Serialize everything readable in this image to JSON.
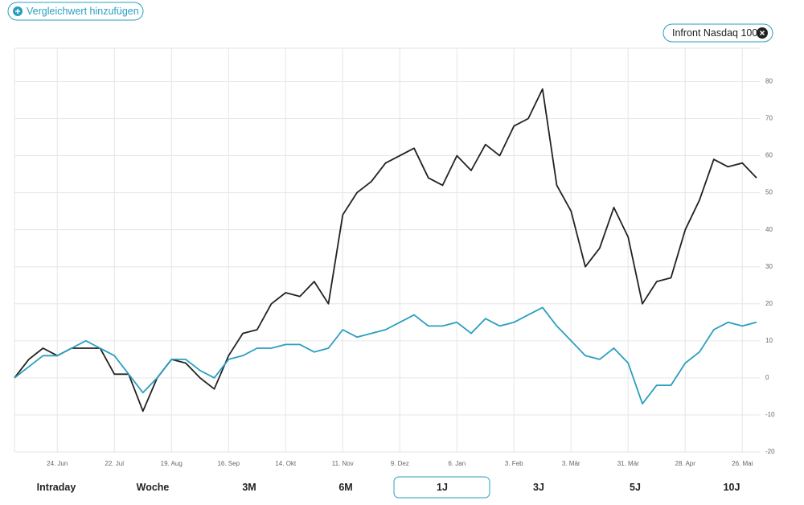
{
  "header": {
    "add_button": "Vergleichwert hinzufügen"
  },
  "chart_data": {
    "type": "line",
    "categories": [
      null,
      null,
      null,
      "24. Jun",
      null,
      null,
      null,
      "22. Jul",
      null,
      null,
      null,
      "19. Aug",
      null,
      null,
      null,
      "16. Sep",
      null,
      null,
      null,
      "14. Okt",
      null,
      null,
      null,
      "11. Nov",
      null,
      null,
      null,
      "9. Dez",
      null,
      null,
      null,
      "6. Jan",
      null,
      null,
      null,
      "3. Feb",
      null,
      null,
      null,
      "3. Mär",
      null,
      null,
      null,
      "31. Mär",
      null,
      null,
      null,
      "28. Apr",
      null,
      null,
      null,
      "26. Mai",
      null
    ],
    "series": [
      {
        "color": "#222222",
        "values": [
          0,
          5,
          8,
          6,
          8,
          8,
          8,
          1,
          1,
          -9,
          0,
          5,
          4,
          0,
          -3,
          6,
          12,
          13,
          20,
          23,
          22,
          26,
          20,
          44,
          50,
          53,
          58,
          60,
          62,
          54,
          52,
          60,
          56,
          63,
          60,
          68,
          70,
          78,
          52,
          45,
          30,
          35,
          46,
          38,
          20,
          26,
          27,
          40,
          48,
          59,
          57,
          58,
          54
        ]
      },
      {
        "name": "Infront Nasdaq 100",
        "color": "#2a9fc0",
        "values": [
          0,
          3,
          6,
          6,
          8,
          10,
          8,
          6,
          1,
          -4,
          0,
          5,
          5,
          2,
          0,
          5,
          6,
          8,
          8,
          9,
          9,
          7,
          8,
          13,
          11,
          12,
          13,
          15,
          17,
          14,
          14,
          15,
          12,
          16,
          14,
          15,
          17,
          19,
          14,
          10,
          6,
          5,
          8,
          4,
          -7,
          -2,
          -2,
          4,
          7,
          13,
          15,
          14,
          15
        ]
      }
    ],
    "ylim": [
      -20,
      89
    ],
    "yticks": [
      -20,
      -10,
      0,
      10,
      20,
      30,
      40,
      50,
      60,
      70,
      80
    ],
    "grid": true
  },
  "periods": {
    "options": [
      "Intraday",
      "Woche",
      "3M",
      "6M",
      "1J",
      "3J",
      "5J",
      "10J"
    ],
    "selected": 4
  }
}
